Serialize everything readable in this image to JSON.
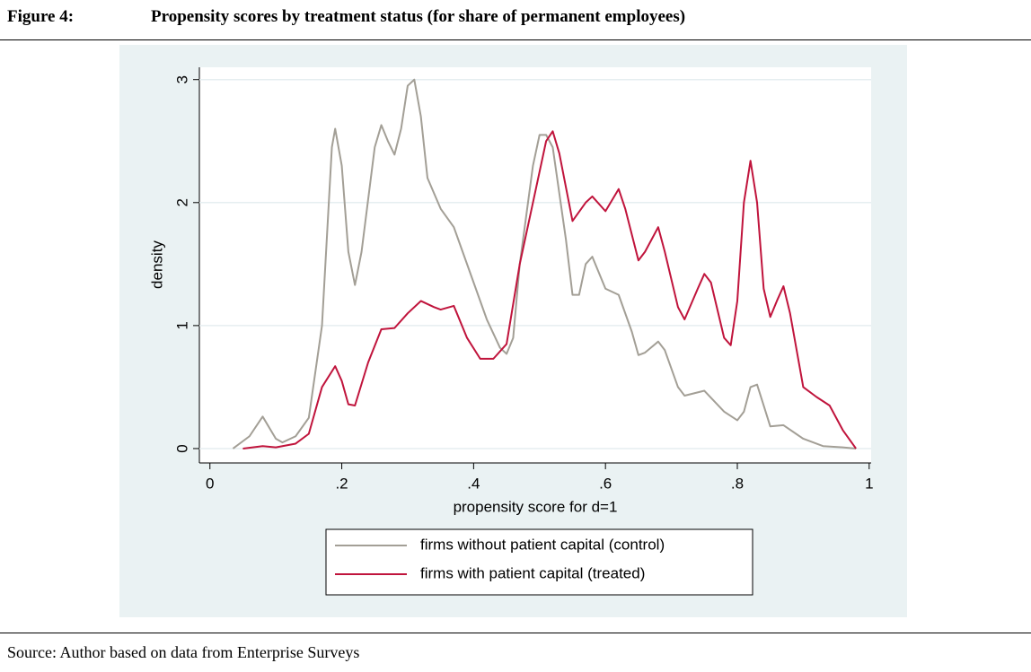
{
  "figure": {
    "label": "Figure 4:",
    "title": "Propensity scores by treatment status (for share of permanent employees)"
  },
  "source": "Source: Author based on data from Enterprise Surveys",
  "chart_data": {
    "type": "line",
    "xlabel": "propensity score for d=1",
    "ylabel": "density",
    "xlim": [
      -0.016,
      1.003
    ],
    "ylim": [
      -0.117,
      3.1
    ],
    "xticks": [
      0,
      {
        "value": 0.2,
        "label": ".2"
      },
      {
        "value": 0.4,
        "label": ".4"
      },
      {
        "value": 0.6,
        "label": ".6"
      },
      {
        "value": 0.8,
        "label": ".8"
      },
      1
    ],
    "yticks": [
      0,
      1,
      2,
      3
    ],
    "grid": true,
    "series": [
      {
        "name": "firms without patient capital (control)",
        "color": "#a39f96",
        "x": [
          0.035,
          0.06,
          0.08,
          0.1,
          0.11,
          0.13,
          0.15,
          0.17,
          0.185,
          0.19,
          0.2,
          0.21,
          0.22,
          0.23,
          0.25,
          0.26,
          0.27,
          0.28,
          0.29,
          0.3,
          0.31,
          0.32,
          0.33,
          0.35,
          0.37,
          0.4,
          0.42,
          0.44,
          0.45,
          0.46,
          0.47,
          0.49,
          0.5,
          0.51,
          0.52,
          0.54,
          0.55,
          0.56,
          0.57,
          0.58,
          0.6,
          0.62,
          0.64,
          0.65,
          0.66,
          0.68,
          0.69,
          0.71,
          0.72,
          0.75,
          0.78,
          0.8,
          0.81,
          0.82,
          0.83,
          0.84,
          0.85,
          0.87,
          0.9,
          0.93,
          0.96,
          0.98
        ],
        "values": [
          0,
          0.1,
          0.26,
          0.08,
          0.05,
          0.1,
          0.25,
          1.0,
          2.45,
          2.6,
          2.3,
          1.6,
          1.33,
          1.6,
          2.45,
          2.63,
          2.5,
          2.39,
          2.6,
          2.95,
          3.0,
          2.7,
          2.2,
          1.95,
          1.8,
          1.35,
          1.05,
          0.82,
          0.77,
          0.9,
          1.5,
          2.3,
          2.55,
          2.55,
          2.45,
          1.7,
          1.25,
          1.25,
          1.5,
          1.56,
          1.3,
          1.25,
          0.95,
          0.76,
          0.78,
          0.87,
          0.8,
          0.5,
          0.43,
          0.47,
          0.3,
          0.23,
          0.3,
          0.5,
          0.52,
          0.35,
          0.18,
          0.19,
          0.08,
          0.02,
          0.01,
          0
        ]
      },
      {
        "name": "firms with patient capital (treated)",
        "color": "#c0143c",
        "x": [
          0.05,
          0.08,
          0.1,
          0.13,
          0.15,
          0.17,
          0.19,
          0.2,
          0.21,
          0.22,
          0.24,
          0.26,
          0.28,
          0.3,
          0.32,
          0.34,
          0.35,
          0.37,
          0.39,
          0.41,
          0.43,
          0.45,
          0.47,
          0.49,
          0.51,
          0.52,
          0.53,
          0.55,
          0.57,
          0.58,
          0.6,
          0.62,
          0.63,
          0.65,
          0.66,
          0.68,
          0.69,
          0.71,
          0.72,
          0.74,
          0.75,
          0.76,
          0.78,
          0.79,
          0.8,
          0.81,
          0.82,
          0.83,
          0.84,
          0.85,
          0.86,
          0.87,
          0.88,
          0.9,
          0.92,
          0.94,
          0.96,
          0.98
        ],
        "values": [
          0,
          0.02,
          0.01,
          0.04,
          0.12,
          0.5,
          0.67,
          0.55,
          0.36,
          0.35,
          0.7,
          0.97,
          0.98,
          1.1,
          1.2,
          1.15,
          1.13,
          1.16,
          0.9,
          0.73,
          0.73,
          0.85,
          1.5,
          2.0,
          2.5,
          2.58,
          2.4,
          1.85,
          2.0,
          2.05,
          1.93,
          2.11,
          1.95,
          1.53,
          1.6,
          1.8,
          1.6,
          1.15,
          1.05,
          1.3,
          1.42,
          1.35,
          0.9,
          0.84,
          1.2,
          2.0,
          2.34,
          2.0,
          1.3,
          1.07,
          1.2,
          1.32,
          1.1,
          0.5,
          0.42,
          0.35,
          0.15,
          0
        ]
      }
    ]
  }
}
